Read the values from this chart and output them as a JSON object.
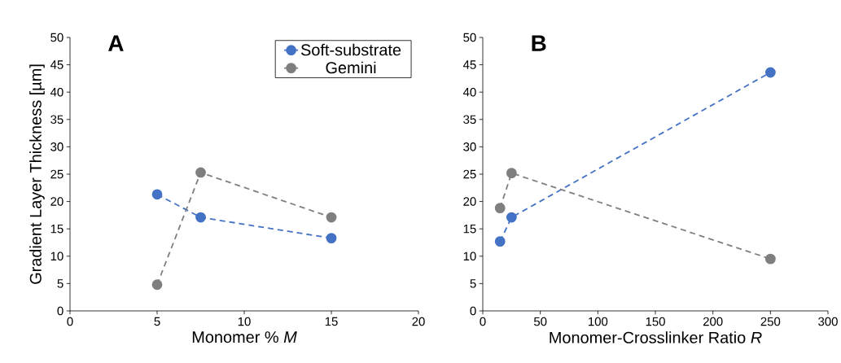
{
  "chart_data": [
    {
      "type": "line",
      "title": "A",
      "xlabel": "Monomer % *M*",
      "ylabel": "Gradient Layer Thickness [µm]",
      "x": [
        5,
        7.5,
        15
      ],
      "series": [
        {
          "name": "Soft-substrate",
          "color": "#4472c4",
          "values": [
            21.3,
            17.1,
            13.3
          ]
        },
        {
          "name": "Gemini",
          "color": "#7f7f7f",
          "values": [
            4.8,
            25.3,
            17.1
          ]
        }
      ],
      "xlim": [
        0,
        20
      ],
      "xticks": [
        0,
        5,
        10,
        15,
        20
      ],
      "ylim": [
        0,
        50
      ],
      "yticks": [
        0,
        5,
        10,
        15,
        20,
        25,
        30,
        35,
        40,
        45,
        50
      ],
      "marker": "circle",
      "line_style": "dashed",
      "legend": "top right",
      "grid": false
    },
    {
      "type": "line",
      "title": "B",
      "xlabel": "Monomer-Crosslinker Ratio *R*",
      "x": [
        15,
        25,
        250
      ],
      "series": [
        {
          "color": "#4472c4",
          "values": [
            12.7,
            17.1,
            43.6
          ]
        },
        {
          "color": "#7f7f7f",
          "values": [
            18.8,
            25.2,
            9.5
          ]
        }
      ],
      "xlim": [
        0,
        300
      ],
      "xticks": [
        0,
        50,
        100,
        150,
        200,
        250,
        300
      ],
      "ylim": [
        0,
        50
      ],
      "yticks": [
        0,
        5,
        10,
        15,
        20,
        25,
        30,
        35,
        40,
        45,
        50
      ],
      "marker": "circle",
      "line_style": "dashed",
      "grid": false
    }
  ]
}
